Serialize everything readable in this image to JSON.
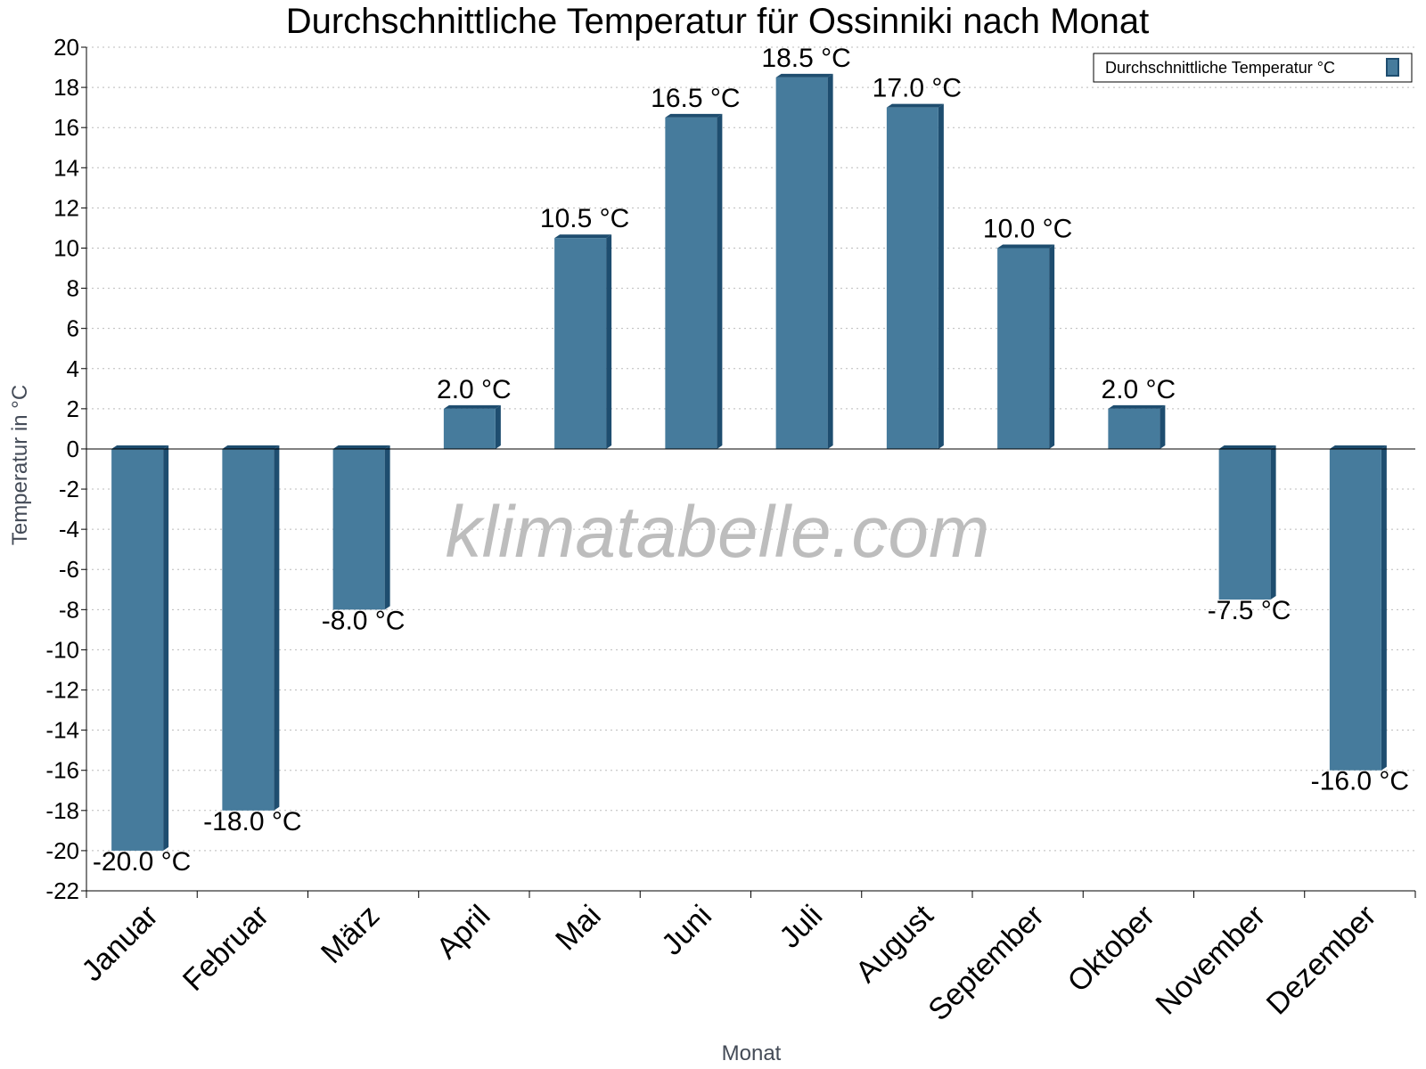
{
  "chart_data": {
    "type": "bar",
    "title": "Durchschnittliche Temperatur für Ossinniki nach Monat",
    "xlabel": "Monat",
    "ylabel": "Temperatur in °C",
    "categories": [
      "Januar",
      "Februar",
      "März",
      "April",
      "Mai",
      "Juni",
      "Juli",
      "August",
      "September",
      "Oktober",
      "November",
      "Dezember"
    ],
    "series": [
      {
        "name": "Durchschnittliche Temperatur °C",
        "values": [
          -20.0,
          -18.0,
          -8.0,
          2.0,
          10.5,
          16.5,
          18.5,
          17.0,
          10.0,
          2.0,
          -7.5,
          -16.0
        ],
        "labels": [
          "-20.0 °C",
          "-18.0 °C",
          "-8.0 °C",
          "2.0 °C",
          "10.5 °C",
          "16.5 °C",
          "18.5 °C",
          "17.0 °C",
          "10.0 °C",
          "2.0 °C",
          "-7.5 °C",
          "-16.0 °C"
        ]
      }
    ],
    "ylim": [
      -22,
      20
    ],
    "yticks": [
      20,
      18,
      16,
      14,
      12,
      10,
      8,
      6,
      4,
      2,
      0,
      -2,
      -4,
      -6,
      -8,
      -10,
      -12,
      -14,
      -16,
      -18,
      -20,
      -22
    ],
    "grid": true,
    "legend_position": "top-right",
    "colors": {
      "bar": "#467b9c",
      "bar_side": "#1e4d6f",
      "grid": "#bbbbbb"
    }
  },
  "watermark": "klimatabelle.com"
}
